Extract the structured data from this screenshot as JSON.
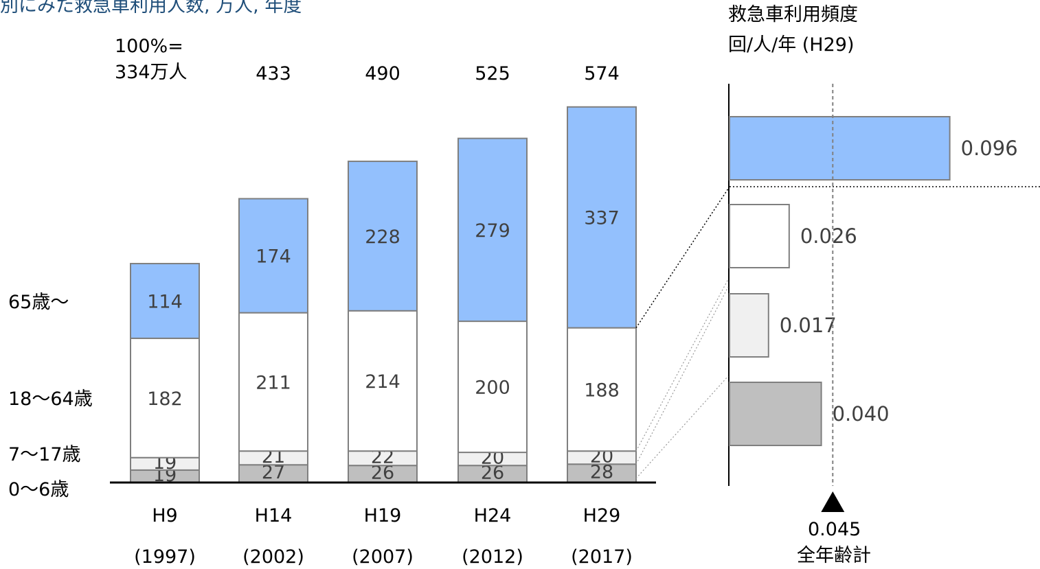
{
  "title_fragment": "別にみた救急車利用人数, 万人, 年度",
  "left_chart": {
    "total_header": [
      "100%=",
      "334万人"
    ],
    "row_labels": [
      "65歳～",
      "18～64歳",
      "7～17歳",
      "0～6歳"
    ]
  },
  "right_chart": {
    "title": "救急車利用頻度",
    "subtitle": "回/人/年 (H29)",
    "marker_value": "0.045",
    "marker_label": "全年齢計"
  },
  "colors": {
    "age65": "#93c0fd",
    "age18_64": "#ffffff",
    "age7_17": "#f0f0f0",
    "age0_6": "#bfbfbf",
    "stroke": "#7f7f7f"
  },
  "chart_data": [
    {
      "type": "bar",
      "stacked": true,
      "title": "",
      "unit": "万人",
      "categories": [
        "H9",
        "H14",
        "H19",
        "H24",
        "H29"
      ],
      "category_years": [
        "(1997)",
        "(2002)",
        "(2007)",
        "(2012)",
        "(2017)"
      ],
      "totals": [
        334,
        433,
        490,
        525,
        574
      ],
      "total_labels": [
        "334万人",
        "433",
        "490",
        "525",
        "574"
      ],
      "series": [
        {
          "name": "0～6歳",
          "values": [
            19,
            27,
            26,
            26,
            28
          ]
        },
        {
          "name": "7～17歳",
          "values": [
            19,
            21,
            22,
            20,
            20
          ]
        },
        {
          "name": "18～64歳",
          "values": [
            182,
            211,
            214,
            200,
            188
          ]
        },
        {
          "name": "65歳～",
          "values": [
            114,
            174,
            228,
            279,
            337
          ]
        }
      ]
    },
    {
      "type": "bar",
      "orientation": "horizontal",
      "title": "救急車利用頻度",
      "unit": "回/人/年 (H29)",
      "categories": [
        "65歳～",
        "18～64歳",
        "7～17歳",
        "0～6歳"
      ],
      "values": [
        0.096,
        0.026,
        0.017,
        0.04
      ],
      "value_labels": [
        "0.096",
        "0.026",
        "0.017",
        "0.040"
      ],
      "reference_line": {
        "value": 0.045,
        "label": "全年齢計"
      }
    }
  ]
}
